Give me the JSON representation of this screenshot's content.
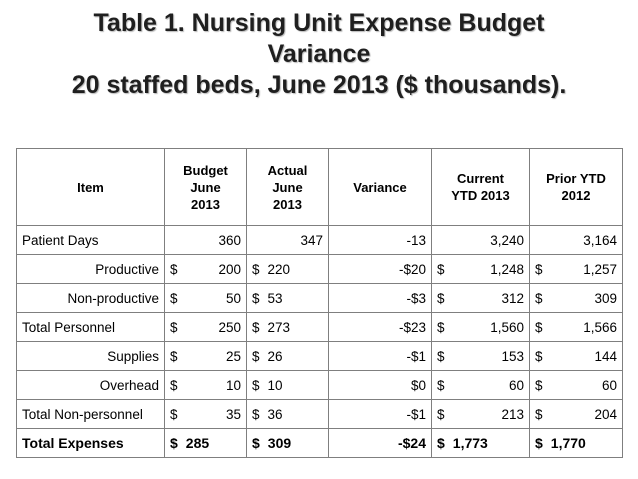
{
  "title": {
    "line1": "Table 1.  Nursing Unit Expense Budget",
    "line2": "Variance",
    "line3": "20 staffed beds, June 2013 ($ thousands)."
  },
  "table": {
    "headers": {
      "item": [
        "Item"
      ],
      "budget": [
        "Budget",
        "June",
        "2013"
      ],
      "actual": [
        "Actual",
        "June",
        "2013"
      ],
      "variance": [
        "Variance"
      ],
      "current": [
        "Current",
        "YTD 2013"
      ],
      "prior": [
        "Prior YTD",
        "2012"
      ]
    },
    "rows": [
      {
        "item": "Patient Days",
        "budget": "360",
        "actual": "347",
        "variance": "-13",
        "current": "3,240",
        "prior": "3,164"
      },
      {
        "item": "Productive",
        "budget": [
          "$",
          "200"
        ],
        "actual": [
          "$",
          "220"
        ],
        "variance": "-$20",
        "current": [
          "$",
          "1,248"
        ],
        "prior": [
          "$",
          "1,257"
        ]
      },
      {
        "item": "Non-productive",
        "budget": [
          "$",
          "50"
        ],
        "actual": [
          "$",
          "53"
        ],
        "variance": "-$3",
        "current": [
          "$",
          "312"
        ],
        "prior": [
          "$",
          "309"
        ]
      },
      {
        "item": "Total Personnel",
        "budget": [
          "$",
          "250"
        ],
        "actual": [
          "$",
          "273"
        ],
        "variance": "-$23",
        "current": [
          "$",
          "1,560"
        ],
        "prior": [
          "$",
          "1,566"
        ]
      },
      {
        "item": "Supplies",
        "budget": [
          "$",
          "25"
        ],
        "actual": [
          "$",
          "26"
        ],
        "variance": "-$1",
        "current": [
          "$",
          "153"
        ],
        "prior": [
          "$",
          "144"
        ]
      },
      {
        "item": "Overhead",
        "budget": [
          "$",
          "10"
        ],
        "actual": [
          "$",
          "10"
        ],
        "variance": "$0",
        "current": [
          "$",
          "60"
        ],
        "prior": [
          "$",
          "60"
        ]
      },
      {
        "item": "Total Non-personnel",
        "budget": [
          "$",
          "35"
        ],
        "actual": [
          "$",
          "36"
        ],
        "variance": "-$1",
        "current": [
          "$",
          "213"
        ],
        "prior": [
          "$",
          "204"
        ]
      },
      {
        "item": "Total Expenses",
        "budget": [
          "$",
          "285"
        ],
        "actual": [
          "$",
          "309"
        ],
        "variance": "-$24",
        "current": [
          "$",
          "1,773"
        ],
        "prior": [
          "$",
          "1,770"
        ]
      }
    ]
  }
}
